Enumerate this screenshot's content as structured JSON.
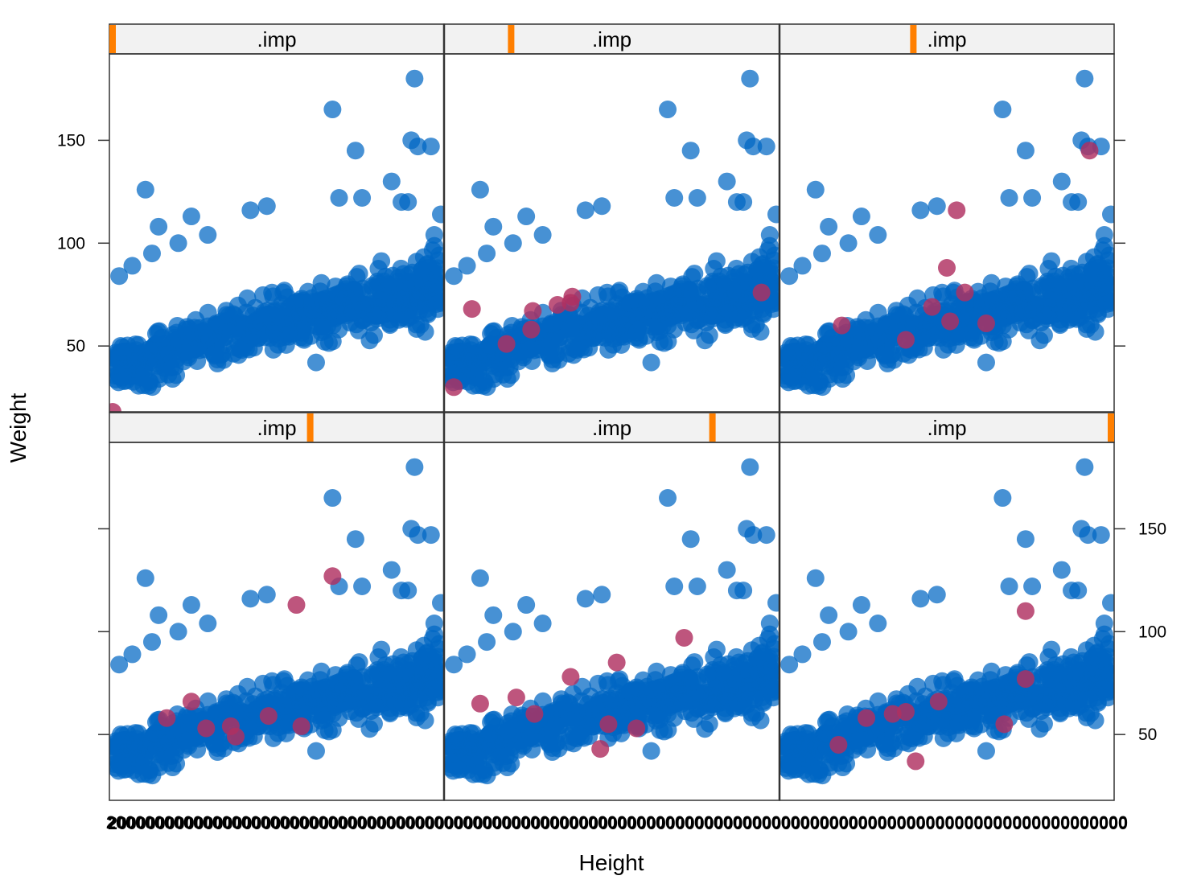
{
  "chart_data": {
    "type": "scatter",
    "xlabel": "Height",
    "ylabel": "Weight",
    "ylim": [
      18,
      192
    ],
    "xlim": [
      0,
      1
    ],
    "yticks": [
      50,
      100,
      150
    ],
    "grid": false,
    "layout": "3 columns x 2 rows (lattice)",
    "strip_label": ".imp",
    "strip_indicator_color": "#ff7f00",
    "observed_color": "#0066c4",
    "imputed_color": "#b03060",
    "x_tick_text": "2000000000000000000000000000000000000000000000000000000000000000000000000000000000000000000000000000000000",
    "panels": [
      {
        "strip": ".imp",
        "indicator": 0.0,
        "imputed": [
          {
            "x": 0.0,
            "y": 18
          }
        ]
      },
      {
        "strip": ".imp",
        "indicator": 0.2,
        "imputed": [
          {
            "x": 0.02,
            "y": 30
          },
          {
            "x": 0.075,
            "y": 68
          },
          {
            "x": 0.18,
            "y": 51
          },
          {
            "x": 0.255,
            "y": 58
          },
          {
            "x": 0.26,
            "y": 67
          },
          {
            "x": 0.335,
            "y": 70
          },
          {
            "x": 0.375,
            "y": 71
          },
          {
            "x": 0.38,
            "y": 74
          },
          {
            "x": 0.955,
            "y": 76
          }
        ]
      },
      {
        "strip": ".imp",
        "indicator": 0.4,
        "imputed": [
          {
            "x": 0.18,
            "y": 60
          },
          {
            "x": 0.375,
            "y": 53
          },
          {
            "x": 0.455,
            "y": 69
          },
          {
            "x": 0.5,
            "y": 88
          },
          {
            "x": 0.51,
            "y": 62
          },
          {
            "x": 0.53,
            "y": 116
          },
          {
            "x": 0.555,
            "y": 76
          },
          {
            "x": 0.62,
            "y": 61
          },
          {
            "x": 0.935,
            "y": 145
          }
        ]
      },
      {
        "strip": ".imp",
        "indicator": 0.6,
        "imputed": [
          {
            "x": 0.165,
            "y": 58
          },
          {
            "x": 0.24,
            "y": 66
          },
          {
            "x": 0.285,
            "y": 53
          },
          {
            "x": 0.36,
            "y": 54
          },
          {
            "x": 0.375,
            "y": 49
          },
          {
            "x": 0.475,
            "y": 59
          },
          {
            "x": 0.56,
            "y": 113
          },
          {
            "x": 0.575,
            "y": 54
          },
          {
            "x": 0.67,
            "y": 127
          }
        ]
      },
      {
        "strip": ".imp",
        "indicator": 0.8,
        "imputed": [
          {
            "x": 0.1,
            "y": 65
          },
          {
            "x": 0.21,
            "y": 68
          },
          {
            "x": 0.265,
            "y": 60
          },
          {
            "x": 0.375,
            "y": 78
          },
          {
            "x": 0.465,
            "y": 43
          },
          {
            "x": 0.49,
            "y": 55
          },
          {
            "x": 0.515,
            "y": 85
          },
          {
            "x": 0.575,
            "y": 53
          },
          {
            "x": 0.72,
            "y": 97
          }
        ]
      },
      {
        "strip": ".imp",
        "indicator": 1.0,
        "imputed": [
          {
            "x": 0.17,
            "y": 45
          },
          {
            "x": 0.255,
            "y": 58
          },
          {
            "x": 0.335,
            "y": 60
          },
          {
            "x": 0.375,
            "y": 61
          },
          {
            "x": 0.405,
            "y": 37
          },
          {
            "x": 0.475,
            "y": 66
          },
          {
            "x": 0.675,
            "y": 55
          },
          {
            "x": 0.74,
            "y": 77
          },
          {
            "x": 0.74,
            "y": 110
          }
        ]
      }
    ],
    "observed_outliers": [
      {
        "x": 0.1,
        "y": 126
      },
      {
        "x": 0.14,
        "y": 108
      },
      {
        "x": 0.12,
        "y": 95
      },
      {
        "x": 0.24,
        "y": 113
      },
      {
        "x": 0.29,
        "y": 104
      },
      {
        "x": 0.2,
        "y": 100
      },
      {
        "x": 0.42,
        "y": 116
      },
      {
        "x": 0.47,
        "y": 118
      },
      {
        "x": 0.67,
        "y": 165
      },
      {
        "x": 0.74,
        "y": 145
      },
      {
        "x": 0.92,
        "y": 180
      },
      {
        "x": 0.91,
        "y": 150
      },
      {
        "x": 0.93,
        "y": 147
      },
      {
        "x": 0.97,
        "y": 147
      },
      {
        "x": 0.85,
        "y": 130
      },
      {
        "x": 0.69,
        "y": 122
      },
      {
        "x": 0.76,
        "y": 122
      },
      {
        "x": 0.88,
        "y": 120
      },
      {
        "x": 0.9,
        "y": 120
      },
      {
        "x": 0.02,
        "y": 84
      },
      {
        "x": 0.06,
        "y": 89
      },
      {
        "x": 0.62,
        "y": 42
      },
      {
        "x": 1.0,
        "y": 114
      },
      {
        "x": 0.98,
        "y": 104
      }
    ]
  }
}
